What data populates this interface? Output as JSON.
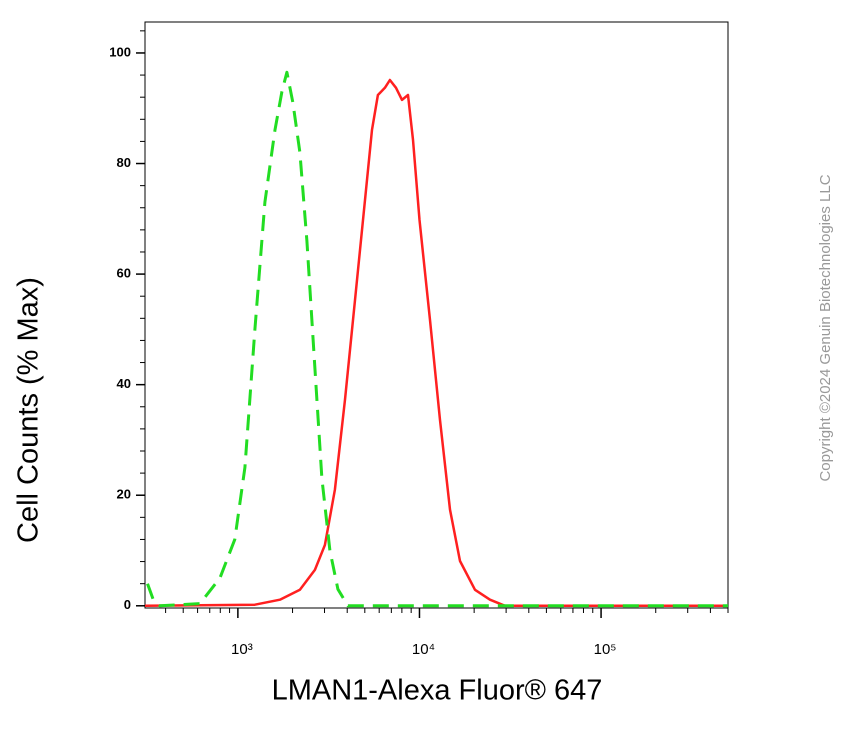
{
  "chart_data": {
    "type": "line",
    "ylabel": "Cell Counts (% Max)",
    "xlabel": "LMAN1-Alexa Fluor® 647",
    "annotation": "Copyright ©2024 Genuin Biotechnologies LLC",
    "xscale": "log",
    "xlim": [
      308,
      500000
    ],
    "ylim": [
      -0.4,
      105.6
    ],
    "xticks": [
      {
        "value": 1000,
        "label": "10³"
      },
      {
        "value": 10000,
        "label": "10⁴"
      },
      {
        "value": 100000,
        "label": "10⁵"
      }
    ],
    "xminorticks": [
      400,
      500,
      600,
      700,
      800,
      900,
      2000,
      3000,
      4000,
      5000,
      6000,
      7000,
      8000,
      9000,
      20000,
      30000,
      40000,
      50000,
      60000,
      70000,
      80000,
      90000,
      200000,
      300000,
      400000,
      500000
    ],
    "yticks": [
      0,
      20,
      40,
      60,
      80,
      100
    ],
    "yminorticks": [
      4,
      8,
      12,
      16,
      24,
      28,
      32,
      36,
      44,
      48,
      52,
      56,
      64,
      68,
      72,
      76,
      84,
      88,
      92,
      96,
      104
    ],
    "grid": false,
    "series": [
      {
        "color": "#ff2020",
        "dash": false,
        "x": [
          308,
          1241,
          1703,
          2196,
          2655,
          3013,
          3420,
          3888,
          4418,
          5014,
          5474,
          5904,
          6451,
          6870,
          7425,
          8013,
          8650,
          9208,
          10000,
          11430,
          12970,
          14730,
          16720,
          20220,
          24450,
          29560,
          500000
        ],
        "values": [
          0,
          0.2,
          1.1,
          2.9,
          6.5,
          11,
          21,
          37.3,
          55.3,
          73.4,
          86.1,
          92.4,
          93.7,
          95.1,
          93.7,
          91.5,
          92.4,
          84.3,
          69.8,
          51.7,
          33.6,
          17.4,
          8.1,
          2.9,
          1.1,
          0,
          0
        ]
      },
      {
        "color": "#22dd22",
        "dash": true,
        "x": [
          318,
          327,
          345,
          372,
          479,
          618,
          796,
          962,
          1093,
          1241,
          1409,
          1600,
          1748,
          1862,
          2009,
          2196,
          2398,
          2655,
          2901,
          3212,
          3554,
          4033,
          10000,
          500000
        ],
        "values": [
          4,
          2.9,
          0.8,
          0,
          0.2,
          0.4,
          5,
          12,
          25,
          50,
          73,
          86,
          93,
          96.5,
          91,
          82,
          66,
          43,
          23,
          10,
          3,
          0,
          0,
          0
        ]
      }
    ]
  }
}
